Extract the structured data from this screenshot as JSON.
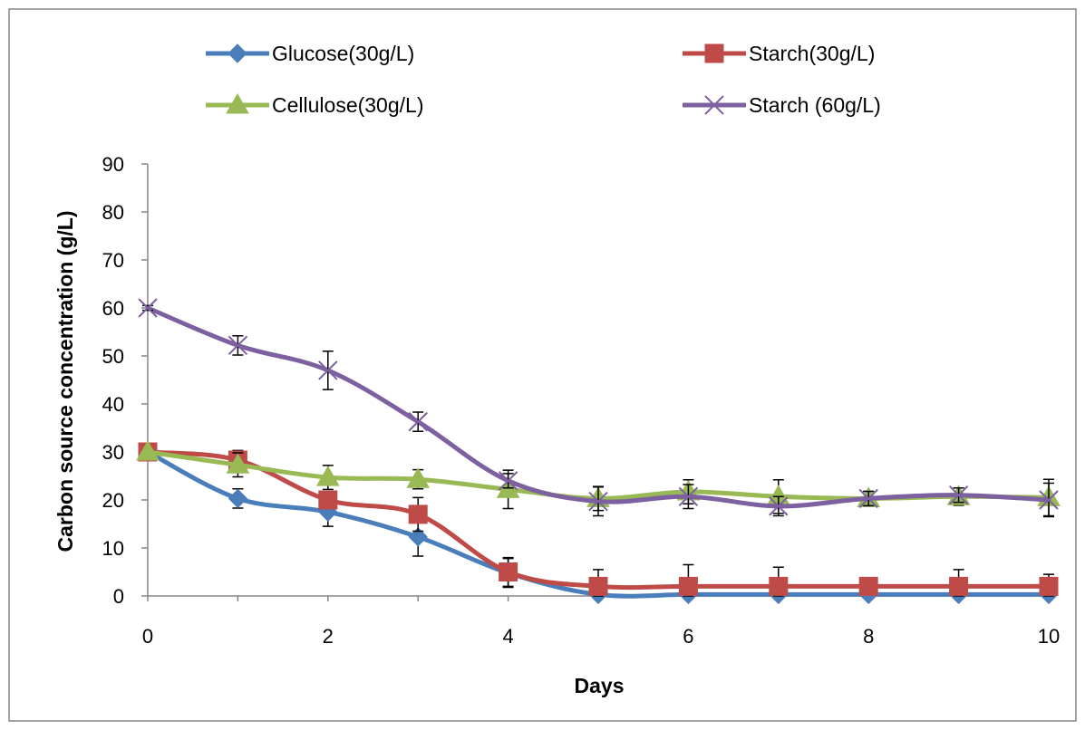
{
  "chart_data": {
    "type": "line",
    "xlabel": "Days",
    "ylabel": "Carbon source concentration (g/L)",
    "xlim": [
      0,
      10
    ],
    "ylim": [
      0,
      90
    ],
    "xticks": [
      "0",
      "2",
      "4",
      "6",
      "8",
      "10"
    ],
    "yticks": [
      "0",
      "10",
      "20",
      "30",
      "40",
      "50",
      "60",
      "70",
      "80",
      "90"
    ],
    "grid": false,
    "legend_position": "top",
    "x": [
      0,
      1,
      2,
      3,
      4,
      5,
      6,
      7,
      8,
      9,
      10
    ],
    "series": [
      {
        "name": "Glucose(30g/L)",
        "color": "#4a7ebb",
        "marker": "diamond",
        "values": [
          30,
          20.3,
          17.5,
          12.3,
          4.8,
          0.3,
          0.3,
          0.3,
          0.3,
          0.3,
          0.3
        ],
        "errors": [
          0,
          2.0,
          3.0,
          4.0,
          3.0,
          0.3,
          0.3,
          0.3,
          0.3,
          0.3,
          0.3
        ]
      },
      {
        "name": "Starch(30g/L)",
        "color": "#be4b48",
        "marker": "square",
        "values": [
          30,
          28.3,
          20,
          17,
          5,
          2,
          2,
          2,
          2,
          2,
          2
        ],
        "errors": [
          0,
          2.0,
          1.0,
          3.5,
          3.0,
          3.5,
          4.5,
          4.0,
          0.3,
          3.5,
          2.5
        ]
      },
      {
        "name": "Cellulose(30g/L)",
        "color": "#98b954",
        "marker": "triangle",
        "values": [
          30,
          27.3,
          24.7,
          24.3,
          22.2,
          20.3,
          21.7,
          20.7,
          20.3,
          20.7,
          20.5
        ],
        "errors": [
          0,
          2.5,
          2.5,
          2.0,
          4.0,
          2.5,
          2.5,
          3.5,
          1.5,
          1.8,
          3.8
        ]
      },
      {
        "name": "Starch (60g/L)",
        "color": "#7d60a0",
        "marker": "x",
        "values": [
          60,
          52.2,
          47,
          36.3,
          24,
          19.7,
          20.7,
          18.7,
          20.3,
          21,
          20
        ],
        "errors": [
          0.5,
          2.0,
          4.0,
          2.0,
          1.5,
          3.0,
          2.5,
          2.0,
          1.5,
          1.5,
          3.5
        ]
      }
    ]
  }
}
